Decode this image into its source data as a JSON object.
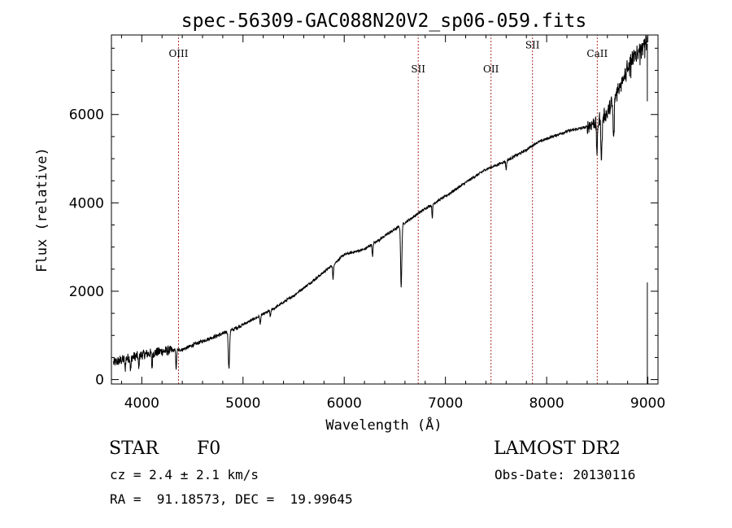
{
  "chart_data": {
    "type": "line",
    "title": "spec-56309-GAC088N20V2_sp06-059.fits",
    "xlabel": "Wavelength (Å)",
    "ylabel": "Flux (relative)",
    "xlim": [
      3700,
      9100
    ],
    "ylim": [
      -100,
      7800
    ],
    "xticks": [
      4000,
      5000,
      6000,
      7000,
      8000,
      9000
    ],
    "yticks": [
      0,
      2000,
      4000,
      6000
    ],
    "xtick_labels": [
      "4000",
      "5000",
      "6000",
      "7000",
      "8000",
      "9000"
    ],
    "ytick_labels": [
      "0",
      "2000",
      "4000",
      "6000"
    ],
    "continuum": [
      [
        3720,
        380
      ],
      [
        3850,
        480
      ],
      [
        4000,
        560
      ],
      [
        4200,
        640
      ],
      [
        4400,
        680
      ],
      [
        4600,
        870
      ],
      [
        4800,
        1040
      ],
      [
        4900,
        1130
      ],
      [
        5100,
        1360
      ],
      [
        5300,
        1600
      ],
      [
        5500,
        1900
      ],
      [
        5700,
        2250
      ],
      [
        5900,
        2620
      ],
      [
        6000,
        2830
      ],
      [
        6200,
        2950
      ],
      [
        6400,
        3250
      ],
      [
        6600,
        3550
      ],
      [
        6800,
        3870
      ],
      [
        7000,
        4150
      ],
      [
        7200,
        4460
      ],
      [
        7400,
        4760
      ],
      [
        7500,
        4850
      ],
      [
        7600,
        4950
      ],
      [
        7800,
        5200
      ],
      [
        7900,
        5360
      ],
      [
        8000,
        5450
      ],
      [
        8200,
        5620
      ],
      [
        8400,
        5720
      ],
      [
        8600,
        6050
      ],
      [
        8700,
        6600
      ],
      [
        8800,
        7100
      ],
      [
        8900,
        7500
      ],
      [
        9000,
        7750
      ]
    ],
    "absorption_features": [
      [
        3835,
        250
      ],
      [
        3890,
        300
      ],
      [
        3970,
        320
      ],
      [
        4101,
        350
      ],
      [
        4340,
        420
      ],
      [
        4861,
        850
      ],
      [
        5170,
        200
      ],
      [
        5270,
        150
      ],
      [
        5890,
        350
      ],
      [
        6280,
        300
      ],
      [
        6563,
        1400
      ],
      [
        6870,
        300
      ],
      [
        7600,
        200
      ],
      [
        8498,
        700
      ],
      [
        8542,
        900
      ],
      [
        8662,
        900
      ]
    ],
    "line_markers": [
      {
        "label": "OIII",
        "x": 4363,
        "label_y": 7300
      },
      {
        "label": "SII",
        "x": 6731,
        "label_y": 6950
      },
      {
        "label": "OII",
        "x": 7450,
        "label_y": 6950
      },
      {
        "label": "SII",
        "x": 7860,
        "label_y": 7500
      },
      {
        "label": "CaII",
        "x": 8500,
        "label_y": 7300
      }
    ]
  },
  "info": {
    "object_type": "STAR",
    "subclass": "F0",
    "survey": "LAMOST DR2",
    "cz": "cz = 2.4 ± 2.1 km/s",
    "obs_date": "Obs-Date: 20130116",
    "coords": "RA =  91.18573, DEC =  19.99645"
  }
}
